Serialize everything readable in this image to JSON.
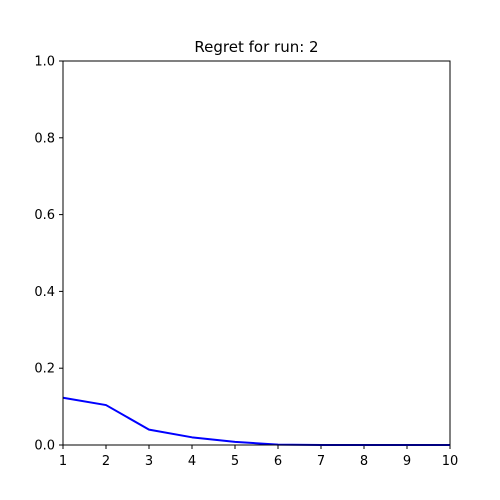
{
  "chart_data": {
    "type": "line",
    "title": "Regret for run: 2",
    "xlabel": "",
    "ylabel": "",
    "x": [
      1,
      2,
      3,
      4,
      5,
      6,
      7,
      8,
      9,
      10
    ],
    "series": [
      {
        "values": [
          0.123,
          0.104,
          0.04,
          0.02,
          0.008,
          0.001,
          0.0,
          0.0,
          0.0,
          0.0
        ],
        "color": "#0000ff"
      }
    ],
    "xlim": [
      1,
      10
    ],
    "ylim": [
      0,
      1
    ],
    "xticks": [
      1,
      2,
      3,
      4,
      5,
      6,
      7,
      8,
      9,
      10
    ],
    "yticks": [
      0.0,
      0.2,
      0.4,
      0.6,
      0.8,
      1.0
    ],
    "xtick_labels": [
      "1",
      "2",
      "3",
      "4",
      "5",
      "6",
      "7",
      "8",
      "9",
      "10"
    ],
    "ytick_labels": [
      "0.0",
      "0.2",
      "0.4",
      "0.6",
      "0.8",
      "1.0"
    ],
    "grid": false,
    "legend": "none"
  }
}
